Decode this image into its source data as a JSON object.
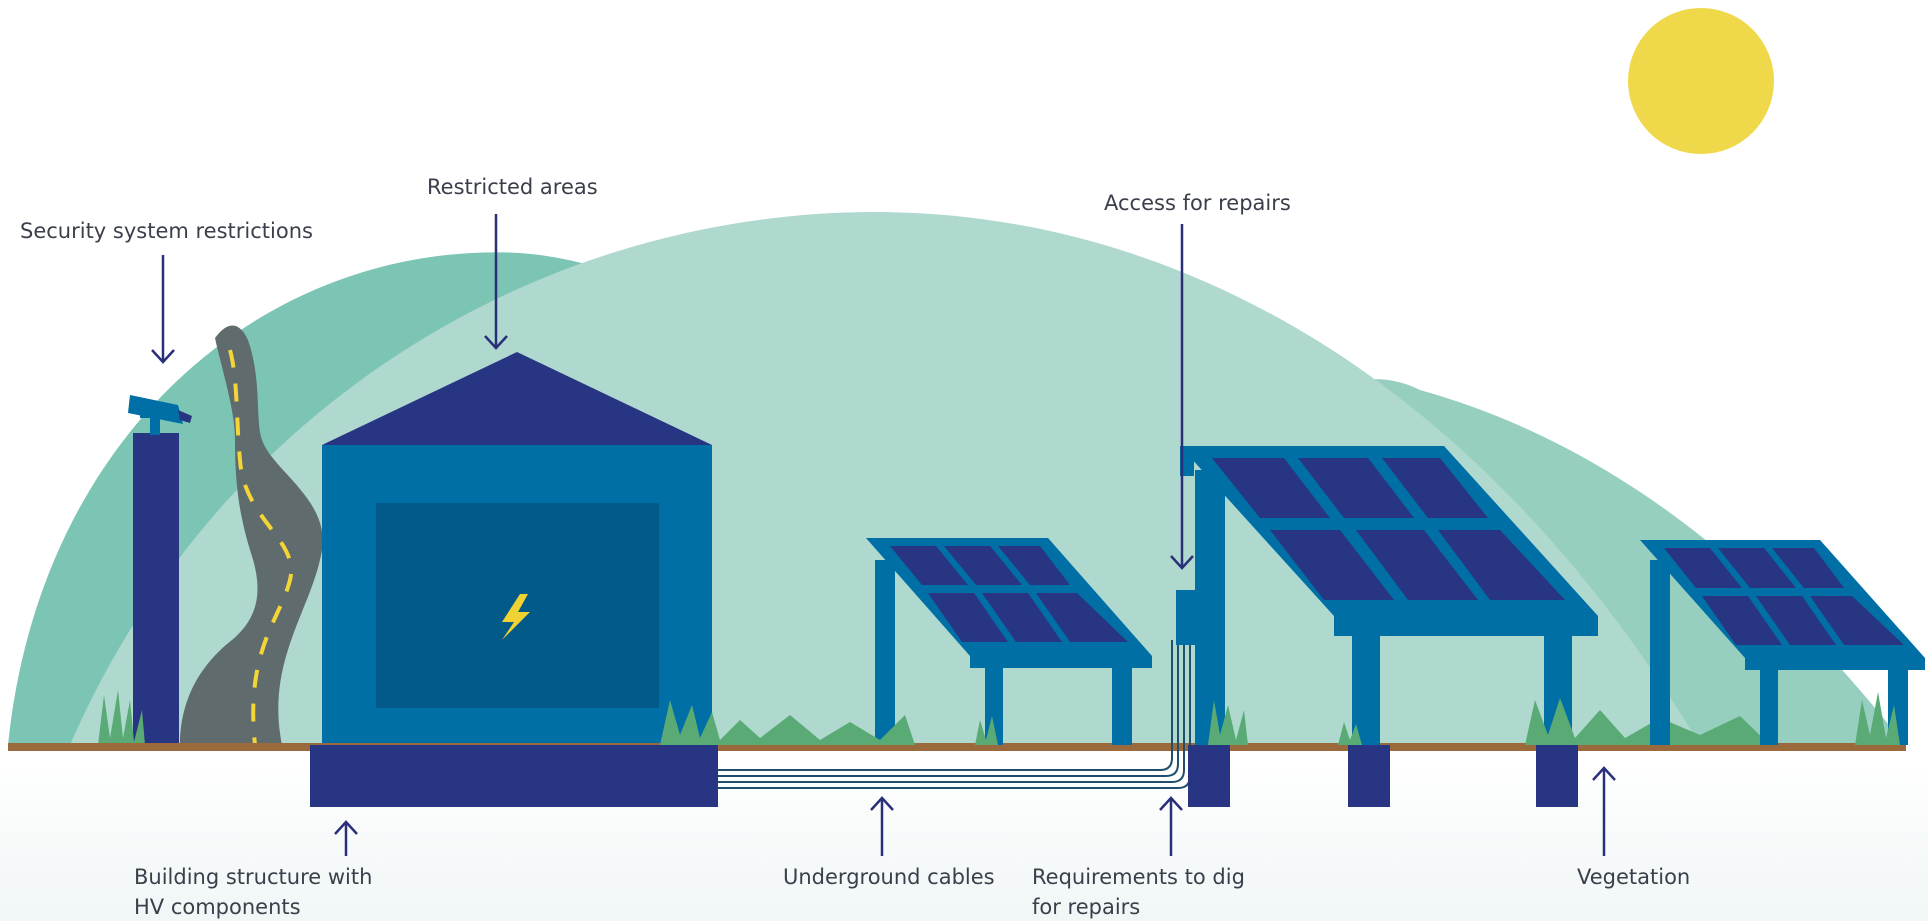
{
  "labels": {
    "security": "Security system restrictions",
    "restricted": "Restricted areas",
    "access": "Access for repairs",
    "building_line1": "Building structure with",
    "building_line2": "HV components",
    "cables": "Underground cables",
    "dig_line1": "Requirements to dig",
    "dig_line2": "for repairs",
    "vegetation": "Vegetation"
  },
  "icons": {
    "sun": "sun-icon",
    "bolt": "lightning-bolt-icon",
    "camera": "security-camera-icon"
  },
  "colors": {
    "hill_dark": "#7cc5b5",
    "hill_light": "#afd9cf",
    "hill_right": "#96cfc0",
    "building_blue": "#006fa6",
    "navy": "#283583",
    "window": "#025a88",
    "bolt": "#f0d232",
    "sun": "#f0d84b",
    "ground": "#9a6a3c",
    "road": "#5f6b6c",
    "road_dash": "#f4d537",
    "grass": "#5aaa76",
    "cable": "#1f4f6a",
    "arrow": "#2a2f7a",
    "text": "#3a3f4b"
  }
}
